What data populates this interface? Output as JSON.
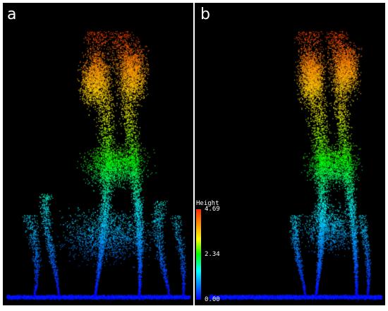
{
  "panels": [
    {
      "label": "a"
    },
    {
      "label": "b"
    }
  ],
  "colorbar": {
    "title": "Height",
    "max_label": "4.69",
    "mid_label": "2.34",
    "min_label": "0.00",
    "colors": [
      "#0000ff",
      "#0080ff",
      "#00ffff",
      "#00ff00",
      "#ffff00",
      "#ff9a00",
      "#ff2a00"
    ]
  }
}
